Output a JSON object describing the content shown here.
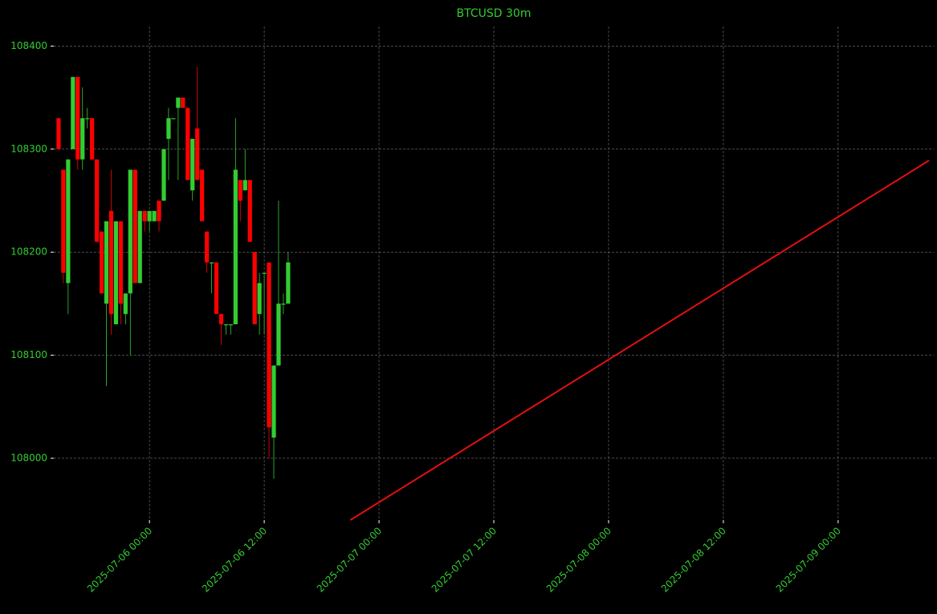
{
  "chart_data": {
    "type": "candlestick",
    "title": "BTCUSD 30m",
    "x": [
      "2025-07-05 14:30",
      "2025-07-05 15:00",
      "2025-07-05 15:30",
      "2025-07-05 16:00",
      "2025-07-05 16:30",
      "2025-07-05 17:00",
      "2025-07-05 17:30",
      "2025-07-05 18:00",
      "2025-07-05 18:30",
      "2025-07-05 19:00",
      "2025-07-05 19:30",
      "2025-07-05 20:00",
      "2025-07-05 20:30",
      "2025-07-05 21:00",
      "2025-07-05 21:30",
      "2025-07-05 22:00",
      "2025-07-05 22:30",
      "2025-07-05 23:00",
      "2025-07-05 23:30",
      "2025-07-06 00:00",
      "2025-07-06 00:30",
      "2025-07-06 01:00",
      "2025-07-06 01:30",
      "2025-07-06 02:00",
      "2025-07-06 02:30",
      "2025-07-06 03:00",
      "2025-07-06 03:30",
      "2025-07-06 04:00",
      "2025-07-06 04:30",
      "2025-07-06 05:00",
      "2025-07-06 05:30",
      "2025-07-06 06:00",
      "2025-07-06 06:30",
      "2025-07-06 07:00",
      "2025-07-06 07:30",
      "2025-07-06 08:00",
      "2025-07-06 08:30",
      "2025-07-06 09:00",
      "2025-07-06 09:30",
      "2025-07-06 10:00",
      "2025-07-06 10:30",
      "2025-07-06 11:00",
      "2025-07-06 11:30",
      "2025-07-06 12:00",
      "2025-07-06 12:30",
      "2025-07-06 13:00",
      "2025-07-06 13:30",
      "2025-07-06 14:00",
      "2025-07-06 14:30"
    ],
    "open": [
      108330,
      108280,
      108170,
      108300,
      108370,
      108290,
      108330,
      108330,
      108290,
      108220,
      108150,
      108240,
      108130,
      108230,
      108140,
      108160,
      108280,
      108170,
      108240,
      108230,
      108230,
      108250,
      108250,
      108310,
      108330,
      108340,
      108350,
      108340,
      108260,
      108320,
      108280,
      108220,
      108190,
      108190,
      108140,
      108130,
      108130,
      108130,
      108270,
      108260,
      108270,
      108200,
      108140,
      108180,
      108190,
      108020,
      108090,
      108150,
      108150
    ],
    "high": [
      108330,
      108280,
      108290,
      108370,
      108370,
      108360,
      108340,
      108330,
      108290,
      108220,
      108230,
      108280,
      108230,
      108230,
      108160,
      108280,
      108280,
      108240,
      108240,
      108240,
      108240,
      108250,
      108300,
      108340,
      108330,
      108350,
      108350,
      108340,
      108310,
      108380,
      108280,
      108220,
      108190,
      108190,
      108140,
      108130,
      108130,
      108330,
      108270,
      108300,
      108270,
      108200,
      108180,
      108180,
      108190,
      108090,
      108250,
      108160,
      108200
    ],
    "low": [
      108300,
      108170,
      108140,
      108300,
      108280,
      108280,
      108320,
      108290,
      108210,
      108160,
      108070,
      108120,
      108130,
      108130,
      108130,
      108100,
      108170,
      108170,
      108220,
      108220,
      108230,
      108220,
      108250,
      108270,
      108330,
      108270,
      108340,
      108270,
      108250,
      108270,
      108230,
      108180,
      108160,
      108140,
      108110,
      108120,
      108120,
      108130,
      108230,
      108260,
      108210,
      108130,
      108120,
      108120,
      108000,
      107980,
      108090,
      108140,
      108150
    ],
    "close": [
      108300,
      108180,
      108290,
      108370,
      108290,
      108330,
      108330,
      108290,
      108210,
      108160,
      108230,
      108140,
      108230,
      108150,
      108160,
      108280,
      108170,
      108240,
      108230,
      108240,
      108240,
      108230,
      108300,
      108330,
      108330,
      108350,
      108340,
      108270,
      108310,
      108270,
      108230,
      108190,
      108190,
      108140,
      108130,
      108130,
      108130,
      108280,
      108250,
      108270,
      108210,
      108130,
      108170,
      108180,
      108030,
      108090,
      108150,
      108150,
      108190
    ],
    "up_color": "#32cd32",
    "down_color": "#ff0000",
    "line": {
      "x": [
        "2025-07-06 21:00",
        "2025-07-09 09:30"
      ],
      "values": [
        107940,
        108289
      ],
      "color": "#e01010"
    },
    "xlim": [
      "2025-07-05 14:00",
      "2025-07-09 10:00"
    ],
    "xticks": [
      "2025-07-06 00:00",
      "2025-07-06 12:00",
      "2025-07-07 00:00",
      "2025-07-07 12:00",
      "2025-07-08 00:00",
      "2025-07-08 12:00",
      "2025-07-09 00:00"
    ],
    "ylim": [
      107940,
      108419
    ],
    "yticks": [
      108000,
      108100,
      108200,
      108300,
      108400
    ],
    "grid": true
  }
}
